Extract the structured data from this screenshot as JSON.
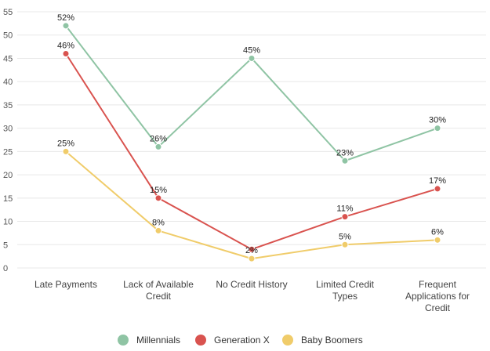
{
  "chart_data": {
    "type": "line",
    "title": "",
    "xlabel": "",
    "ylabel": "",
    "ylim": [
      0,
      55
    ],
    "y_ticks": [
      0,
      5,
      10,
      15,
      20,
      25,
      30,
      35,
      40,
      45,
      50,
      55
    ],
    "grid": "horizontal",
    "legend_position": "bottom",
    "categories": [
      [
        "Late Payments"
      ],
      [
        "Lack of Available",
        "Credit"
      ],
      [
        "No Credit History"
      ],
      [
        "Limited Credit",
        "Types"
      ],
      [
        "Frequent",
        "Applications for",
        "Credit"
      ]
    ],
    "series": [
      {
        "name": "Millennials",
        "color": "#8fc4a4",
        "values": [
          52,
          26,
          45,
          23,
          30
        ],
        "labels": [
          "52%",
          "26%",
          "45%",
          "23%",
          "30%"
        ]
      },
      {
        "name": "Generation X",
        "color": "#d9534f",
        "values": [
          46,
          15,
          4,
          11,
          17
        ],
        "labels": [
          "46%",
          "15%",
          "",
          "11%",
          "17%"
        ]
      },
      {
        "name": "Baby Boomers",
        "color": "#f0cc6a",
        "values": [
          25,
          8,
          2,
          5,
          6
        ],
        "labels": [
          "25%",
          "8%",
          "2%",
          "5%",
          "6%"
        ]
      }
    ]
  }
}
